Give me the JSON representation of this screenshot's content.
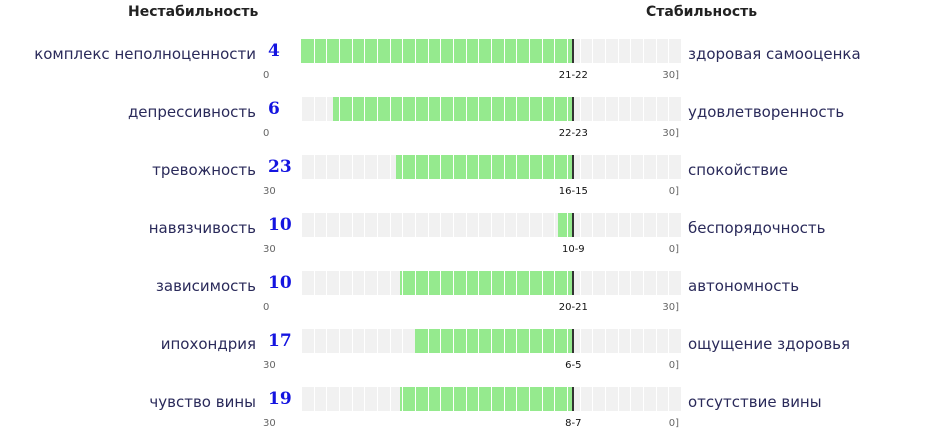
{
  "chart_data": {
    "type": "bar",
    "left_header": "Нестабильность",
    "right_header": "Стабильность",
    "rows": [
      {
        "left_label": "комплекс неполноценности",
        "right_label": "здоровая самооценка",
        "score": "4",
        "scale_min": "0",
        "scale_max": "30]",
        "norm_label": "21-22",
        "bar_from": 0,
        "bar_to": 21.5
      },
      {
        "left_label": "депрессивность",
        "right_label": "удовлетворенность",
        "score": "6",
        "scale_min": "0",
        "scale_max": "30]",
        "norm_label": "22-23",
        "bar_from": 2.5,
        "bar_to": 21.5
      },
      {
        "left_label": "тревожность",
        "right_label": "спокойствие",
        "score": "23",
        "scale_min": "30",
        "scale_max": "0]",
        "norm_label": "16-15",
        "bar_from": 7.5,
        "bar_to": 21.5
      },
      {
        "left_label": "навязчивость",
        "right_label": "беспорядочность",
        "score": "10",
        "scale_min": "30",
        "scale_max": "0]",
        "norm_label": "10-9",
        "bar_from": 20.3,
        "bar_to": 21.5
      },
      {
        "left_label": "зависимость",
        "right_label": "автономность",
        "score": "10",
        "scale_min": "0",
        "scale_max": "30]",
        "norm_label": "20-21",
        "bar_from": 7.8,
        "bar_to": 21.5
      },
      {
        "left_label": "ипохондрия",
        "right_label": "ощущение здоровья",
        "score": "17",
        "scale_min": "30",
        "scale_max": "0]",
        "norm_label": "6-5",
        "bar_from": 9.0,
        "bar_to": 21.5
      },
      {
        "left_label": "чувство вины",
        "right_label": "отсутствие вины",
        "score": "19",
        "scale_min": "30",
        "scale_max": "0]",
        "norm_label": "8-7",
        "bar_from": 7.8,
        "bar_to": 21.5
      }
    ],
    "scale_cells": 30,
    "colors": {
      "fill": "#95ea8e",
      "track": "#f1f1f1",
      "score": "#1414e0",
      "marker": "#333333"
    }
  }
}
